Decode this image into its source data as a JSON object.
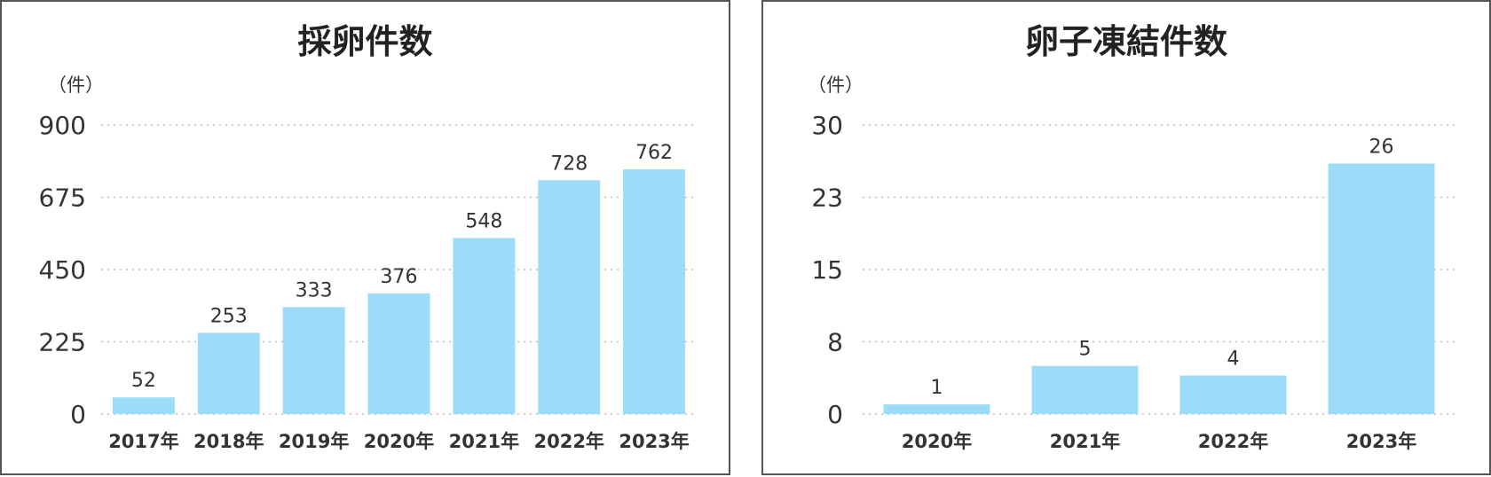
{
  "chart_data": [
    {
      "type": "bar",
      "title": "採卵件数",
      "unit_label": "（件）",
      "categories": [
        "2017年",
        "2018年",
        "2019年",
        "2020年",
        "2021年",
        "2022年",
        "2023年"
      ],
      "values": [
        52,
        253,
        333,
        376,
        548,
        728,
        762
      ],
      "yticks": [
        "0",
        "225",
        "450",
        "675",
        "900"
      ],
      "ylim": [
        0,
        900
      ],
      "grid": true,
      "bar_color": "#9ddcf8",
      "grid_color": "#bbbbbb"
    },
    {
      "type": "bar",
      "title": "卵子凍結件数",
      "unit_label": "（件）",
      "categories": [
        "2020年",
        "2021年",
        "2022年",
        "2023年"
      ],
      "values": [
        1,
        5,
        4,
        26
      ],
      "yticks": [
        "0",
        "8",
        "15",
        "23",
        "30"
      ],
      "ylim": [
        0,
        30
      ],
      "grid": true,
      "bar_color": "#9ddcf8",
      "grid_color": "#bbbbbb"
    }
  ]
}
